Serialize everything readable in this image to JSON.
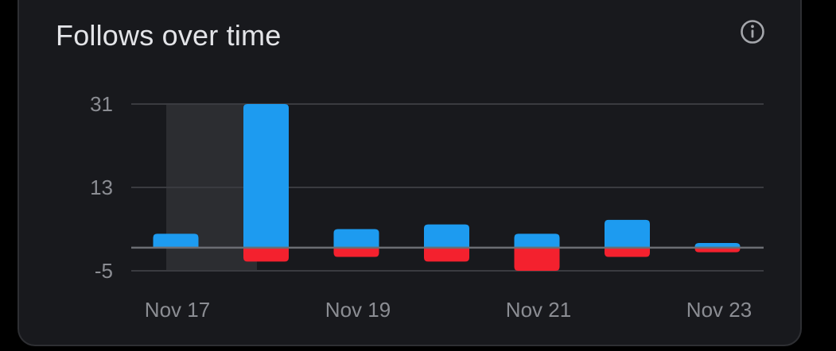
{
  "header": {
    "title": "Follows over time",
    "info_icon": "info-circle-icon"
  },
  "colors": {
    "follows": "#1d9bf0",
    "unfollows": "#f4212e",
    "background": "#18191d",
    "grid": "#3a3b40",
    "zero_line": "#6b6d73",
    "highlight": "#2c2d31",
    "text": "#8b8d93"
  },
  "chart_data": {
    "type": "bar",
    "stacked": "diverging",
    "categories": [
      "Nov 17",
      "Nov 18",
      "Nov 19",
      "Nov 20",
      "Nov 21",
      "Nov 22",
      "Nov 23"
    ],
    "x_tick_labels": [
      "Nov 17",
      "Nov 19",
      "Nov 21",
      "Nov 23"
    ],
    "y_ticks": [
      31,
      13,
      -5
    ],
    "ylim": [
      -5,
      31
    ],
    "series": [
      {
        "values": [
          3,
          31,
          4,
          5,
          3,
          6,
          1
        ]
      },
      {
        "values": [
          0,
          -3,
          -2,
          -3,
          -5,
          -2,
          -1
        ]
      }
    ],
    "highlighted_category": "Nov 17",
    "grid": true,
    "title": "Follows over time"
  }
}
